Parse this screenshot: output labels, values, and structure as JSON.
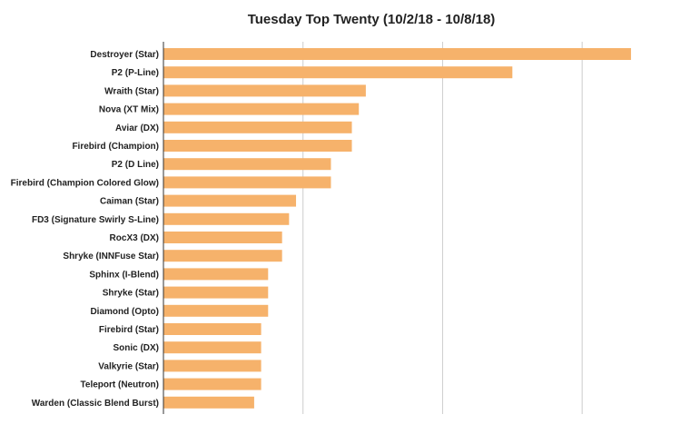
{
  "chart_data": {
    "type": "bar",
    "orientation": "horizontal",
    "title": "Tuesday Top Twenty (10/2/18 - 10/8/18)",
    "xlabel": "",
    "ylabel": "",
    "categories": [
      "Destroyer (Star)",
      "P2 (P-Line)",
      "Wraith (Star)",
      "Nova (XT Mix)",
      "Aviar (DX)",
      "Firebird (Champion)",
      "P2 (D Line)",
      "Firebird (Champion Colored Glow)",
      "Caiman (Star)",
      "FD3 (Signature Swirly S-Line)",
      "RocX3 (DX)",
      "Shryke (INNFuse Star)",
      "Sphinx (I-Blend)",
      "Shryke (Star)",
      "Diamond (Opto)",
      "Firebird (Star)",
      "Sonic (DX)",
      "Valkyrie (Star)",
      "Teleport (Neutron)",
      "Warden (Classic Blend Burst)"
    ],
    "values": [
      67,
      50,
      29,
      28,
      27,
      27,
      24,
      24,
      19,
      18,
      17,
      17,
      15,
      15,
      15,
      14,
      14,
      14,
      14,
      13
    ],
    "xlim": [
      0,
      70
    ],
    "gridlines": [
      0,
      20,
      40,
      60
    ],
    "grid": true,
    "show_x_tick_labels": false,
    "legend": "none",
    "bar_color": "#f6b26b",
    "grid_color": "#cccccc",
    "axis_color": "#333333"
  }
}
